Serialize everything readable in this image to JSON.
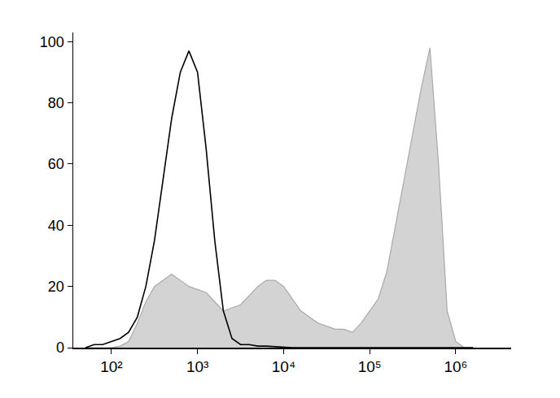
{
  "chart_data": {
    "type": "line",
    "log": "x",
    "grid": false,
    "x": [
      50,
      63,
      79,
      100,
      126,
      158,
      200,
      251,
      316,
      398,
      501,
      631,
      794,
      1000,
      1259,
      1585,
      1995,
      2512,
      3162,
      3981,
      5012,
      6310,
      7943,
      10000,
      12589,
      15849,
      19953,
      25119,
      31623,
      39811,
      50119,
      63096,
      79433,
      100000,
      125893,
      158489,
      199526,
      251189,
      316228,
      398107,
      501187,
      630957,
      794328,
      1000000,
      1258925,
      1584893
    ],
    "series": [
      {
        "type": "area",
        "color": "#d3d3d3",
        "values": [
          0,
          0,
          0,
          0,
          0.5,
          2,
          8,
          15,
          20,
          22,
          24,
          22,
          20,
          19,
          18,
          15,
          12,
          13,
          14,
          17,
          20,
          22,
          22,
          20,
          16,
          12,
          10,
          8,
          7,
          6,
          6,
          5,
          8,
          12,
          16,
          25,
          40,
          55,
          70,
          85,
          98,
          60,
          12,
          2,
          0,
          0
        ]
      },
      {
        "type": "line",
        "color": "#000000",
        "values": [
          0,
          1,
          1,
          2,
          3,
          5,
          10,
          20,
          35,
          55,
          75,
          90,
          97,
          90,
          65,
          35,
          12,
          3,
          1,
          1,
          0.5,
          0.5,
          0.3,
          0,
          0,
          0,
          0,
          0,
          0,
          0,
          0,
          0,
          0,
          0,
          0,
          0,
          0,
          0,
          0,
          0,
          0,
          0,
          0,
          0,
          0,
          0
        ]
      }
    ],
    "xlim": [
      36,
      4400000
    ],
    "xticks": [
      {
        "value": 100,
        "label": "10²"
      },
      {
        "value": 1000,
        "label": "10³"
      },
      {
        "value": 10000,
        "label": "10⁴"
      },
      {
        "value": 100000,
        "label": "10⁵"
      },
      {
        "value": 1000000,
        "label": "10⁶"
      }
    ],
    "ylim": [
      0,
      103
    ],
    "yticks": [
      0,
      20,
      40,
      60,
      80,
      100
    ]
  }
}
